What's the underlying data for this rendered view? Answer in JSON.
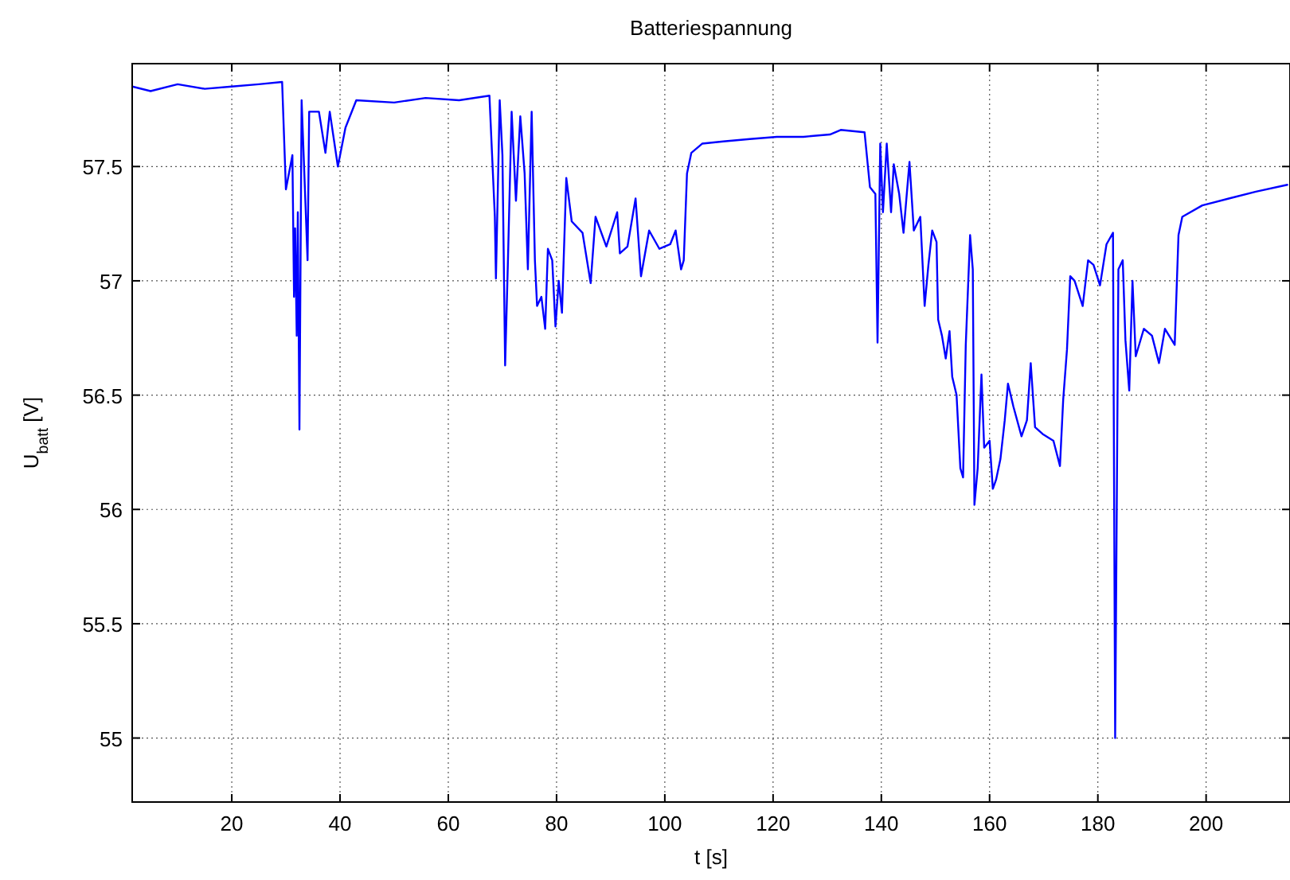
{
  "chart_data": {
    "type": "line",
    "title": "Batteriespannung",
    "xlabel": "t [s]",
    "ylabel": "U$_{batt}$ [V]",
    "xlim": [
      1.6,
      215.5
    ],
    "ylim": [
      54.72,
      57.95
    ],
    "xticks": [
      20,
      40,
      60,
      80,
      100,
      120,
      140,
      160,
      180,
      200
    ],
    "yticks": [
      55,
      55.5,
      56,
      56.5,
      57,
      57.5
    ],
    "grid": true,
    "line_style": "solid",
    "series": [
      {
        "color": "#0000ff",
        "x": [
          1.6,
          5,
          10,
          15,
          20,
          25,
          29.3,
          30.0,
          31.2,
          31.5,
          31.7,
          32.0,
          32.2,
          32.5,
          32.9,
          34.0,
          34.3,
          36.1,
          37.3,
          38.1,
          39.6,
          41.0,
          43.0,
          50,
          55.8,
          62,
          67.6,
          68.6,
          68.8,
          69.5,
          70.0,
          70.5,
          71.0,
          71.7,
          72.5,
          73.3,
          74.1,
          74.7,
          75.4,
          76.0,
          76.4,
          77.2,
          77.9,
          78.4,
          79.2,
          79.8,
          80.4,
          81.0,
          81.8,
          82.8,
          84.8,
          86.3,
          87.2,
          89.2,
          91.2,
          91.7,
          93.1,
          94.6,
          95.6,
          97.1,
          99.0,
          101.0,
          102.0,
          103.0,
          103.5,
          104.1,
          104.9,
          106.9,
          110.8,
          115.7,
          120.7,
          125.6,
          130.5,
          132.5,
          136.9,
          137.9,
          138.9,
          139.3,
          139.8,
          140.3,
          141.0,
          141.8,
          142.3,
          143.3,
          144.1,
          145.2,
          146.0,
          147.2,
          148.0,
          148.7,
          149.4,
          150.2,
          150.5,
          151.2,
          151.9,
          152.6,
          153.1,
          153.9,
          154.6,
          155.1,
          155.6,
          156.4,
          156.9,
          157.2,
          157.8,
          158.5,
          159.0,
          160.0,
          160.6,
          161.2,
          162.0,
          162.8,
          163.4,
          164.4,
          165.9,
          166.9,
          167.6,
          168.4,
          169.8,
          171.8,
          173.0,
          173.6,
          174.3,
          174.9,
          175.7,
          177.2,
          178.2,
          179.2,
          180.4,
          181.6,
          182.8,
          183.2,
          183.8,
          184.6,
          185.1,
          185.8,
          186.4,
          187.0,
          188.5,
          190.0,
          191.3,
          192.4,
          194.2,
          194.9,
          195.6,
          199.3,
          204.2,
          209.2,
          215.0
        ],
        "values": [
          57.85,
          57.83,
          57.86,
          57.84,
          57.85,
          57.86,
          57.87,
          57.4,
          57.55,
          56.93,
          57.23,
          56.76,
          57.3,
          56.35,
          57.79,
          57.09,
          57.74,
          57.74,
          57.56,
          57.74,
          57.5,
          57.67,
          57.79,
          57.78,
          57.8,
          57.79,
          57.81,
          57.28,
          57.01,
          57.79,
          57.55,
          56.63,
          57.07,
          57.74,
          57.35,
          57.72,
          57.47,
          57.05,
          57.74,
          57.09,
          56.89,
          56.93,
          56.79,
          57.14,
          57.09,
          56.8,
          57.0,
          56.86,
          57.45,
          57.26,
          57.21,
          56.99,
          57.28,
          57.15,
          57.3,
          57.12,
          57.15,
          57.36,
          57.02,
          57.22,
          57.14,
          57.16,
          57.22,
          57.05,
          57.09,
          57.47,
          57.56,
          57.6,
          57.61,
          57.62,
          57.63,
          57.63,
          57.64,
          57.66,
          57.65,
          57.41,
          57.38,
          56.73,
          57.6,
          57.3,
          57.6,
          57.3,
          57.51,
          57.38,
          57.21,
          57.52,
          57.22,
          57.28,
          56.89,
          57.07,
          57.22,
          57.17,
          56.83,
          56.76,
          56.66,
          56.78,
          56.58,
          56.5,
          56.18,
          56.14,
          56.72,
          57.2,
          57.05,
          56.02,
          56.18,
          56.59,
          56.27,
          56.3,
          56.09,
          56.13,
          56.22,
          56.39,
          56.55,
          56.45,
          56.32,
          56.39,
          56.64,
          56.36,
          56.33,
          56.3,
          56.19,
          56.48,
          56.7,
          57.02,
          57.0,
          56.89,
          57.09,
          57.07,
          56.98,
          57.16,
          57.21,
          55.0,
          57.05,
          57.09,
          56.74,
          56.52,
          57.0,
          56.67,
          56.79,
          56.76,
          56.64,
          56.79,
          56.72,
          57.2,
          57.28,
          57.33,
          57.36,
          57.39,
          57.42
        ]
      }
    ]
  }
}
